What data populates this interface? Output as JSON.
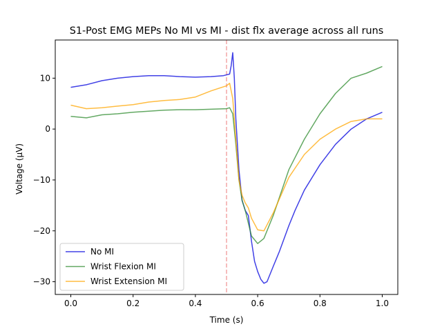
{
  "chart_data": {
    "type": "line",
    "title": "S1-Post EMG MEPs No MI vs MI - dist flx average across all runs",
    "xlabel": "Time (s)",
    "ylabel": "Voltage (µV)",
    "xlim": [
      -0.05,
      1.05
    ],
    "ylim": [
      -32.5,
      17.5
    ],
    "xticks": [
      0.0,
      0.2,
      0.4,
      0.6,
      0.8,
      1.0
    ],
    "xtick_labels": [
      "0.0",
      "0.2",
      "0.4",
      "0.6",
      "0.8",
      "1.0"
    ],
    "yticks": [
      -30,
      -20,
      -10,
      0,
      10
    ],
    "ytick_labels": [
      "−30",
      "−20",
      "−10",
      "0",
      "10"
    ],
    "vline": {
      "x": 0.5,
      "color": "#f4a6a6",
      "style": "dashed"
    },
    "legend_position": "lower-left",
    "series": [
      {
        "name": "No MI",
        "color": "#0000dd",
        "x": [
          0.0,
          0.05,
          0.1,
          0.15,
          0.2,
          0.25,
          0.3,
          0.35,
          0.4,
          0.45,
          0.49,
          0.51,
          0.515,
          0.52,
          0.525,
          0.53,
          0.54,
          0.55,
          0.56,
          0.57,
          0.58,
          0.59,
          0.6,
          0.61,
          0.62,
          0.63,
          0.65,
          0.67,
          0.7,
          0.72,
          0.75,
          0.8,
          0.85,
          0.9,
          0.95,
          1.0
        ],
        "y": [
          8.2,
          8.7,
          9.5,
          10.0,
          10.3,
          10.5,
          10.5,
          10.3,
          10.2,
          10.3,
          10.5,
          10.8,
          12.5,
          15.0,
          10.0,
          2.0,
          -8.0,
          -14.0,
          -16.0,
          -17.0,
          -22.0,
          -26.0,
          -28.0,
          -29.5,
          -30.3,
          -30.0,
          -27.0,
          -24.0,
          -19.0,
          -16.0,
          -12.0,
          -7.0,
          -3.0,
          0.0,
          2.0,
          3.3
        ]
      },
      {
        "name": "Wrist Flexion MI",
        "color": "#2e8b2e",
        "x": [
          0.0,
          0.05,
          0.1,
          0.15,
          0.2,
          0.25,
          0.3,
          0.35,
          0.4,
          0.45,
          0.5,
          0.51,
          0.52,
          0.53,
          0.54,
          0.55,
          0.56,
          0.57,
          0.58,
          0.6,
          0.62,
          0.65,
          0.7,
          0.75,
          0.8,
          0.85,
          0.9,
          0.95,
          1.0
        ],
        "y": [
          2.5,
          2.2,
          2.8,
          3.0,
          3.3,
          3.5,
          3.7,
          3.8,
          3.8,
          3.9,
          4.0,
          4.2,
          3.0,
          -3.0,
          -10.0,
          -14.0,
          -16.0,
          -18.5,
          -21.0,
          -22.5,
          -21.5,
          -17.0,
          -8.0,
          -2.0,
          3.0,
          7.0,
          10.0,
          11.0,
          12.3
        ]
      },
      {
        "name": "Wrist Extension MI",
        "color": "#ffa500",
        "x": [
          0.0,
          0.05,
          0.1,
          0.15,
          0.2,
          0.25,
          0.3,
          0.35,
          0.4,
          0.45,
          0.5,
          0.51,
          0.52,
          0.53,
          0.54,
          0.55,
          0.56,
          0.57,
          0.58,
          0.6,
          0.62,
          0.65,
          0.7,
          0.75,
          0.8,
          0.85,
          0.9,
          0.95,
          1.0
        ],
        "y": [
          4.7,
          4.0,
          4.2,
          4.5,
          4.8,
          5.3,
          5.6,
          5.8,
          6.3,
          7.5,
          8.5,
          9.0,
          6.0,
          -2.0,
          -10.0,
          -13.0,
          -14.5,
          -15.5,
          -17.5,
          -19.8,
          -20.0,
          -16.5,
          -9.5,
          -5.0,
          -2.0,
          0.0,
          1.5,
          2.0,
          2.0
        ]
      }
    ]
  }
}
